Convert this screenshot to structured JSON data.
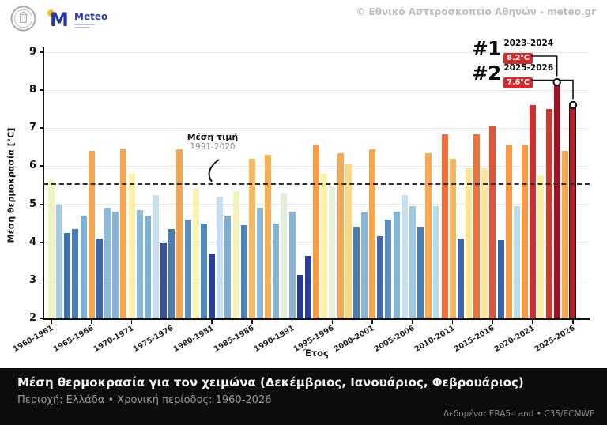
{
  "header": {
    "copyright": "© Εθνικό Αστεροσκοπείο Αθηνών - meteo.gr",
    "meteo_logo_letter": "M",
    "meteo_logo_name": "Meteo"
  },
  "footer": {
    "title": "Μέση θερμοκρασία για τον χειμώνα (Δεκέμβριος, Ιανουάριος, Φεβρουάριος)",
    "subtitle": "Περιοχή: Ελλάδα • Χρονική περίοδος: 1960-2026",
    "source": "Δεδομένα: ERA5-Land • C3S/ECMWF"
  },
  "chart_data": {
    "type": "bar",
    "xlabel": "Έτος",
    "ylabel": "Μέση θερμοκρασία [°C]",
    "ylim": [
      2,
      9
    ],
    "yticks": [
      2,
      3,
      4,
      5,
      6,
      7,
      8,
      9
    ],
    "grid": true,
    "x_tick_every": 5,
    "mean_line": {
      "value": 5.53,
      "label": "Μέση τιμή",
      "sublabel": "1991-2020"
    },
    "rank_callouts": [
      {
        "rank": "#1",
        "season": "2023-2024",
        "value_label": "8.2°C",
        "season_index": 63
      },
      {
        "rank": "#2",
        "season": "2025-2026",
        "value_label": "7.6°C",
        "season_index": 65
      }
    ],
    "marker_indices": [
      63,
      65
    ],
    "outlined_index": 65,
    "categories": [
      "1960-1961",
      "1961-1962",
      "1962-1963",
      "1963-1964",
      "1964-1965",
      "1965-1966",
      "1966-1967",
      "1967-1968",
      "1968-1969",
      "1969-1970",
      "1970-1971",
      "1971-1972",
      "1972-1973",
      "1973-1974",
      "1974-1975",
      "1975-1976",
      "1976-1977",
      "1977-1978",
      "1978-1979",
      "1979-1980",
      "1980-1981",
      "1981-1982",
      "1982-1983",
      "1983-1984",
      "1984-1985",
      "1985-1986",
      "1986-1987",
      "1987-1988",
      "1988-1989",
      "1989-1990",
      "1990-1991",
      "1991-1992",
      "1992-1993",
      "1993-1994",
      "1994-1995",
      "1995-1996",
      "1996-1997",
      "1997-1998",
      "1998-1999",
      "1999-2000",
      "2000-2001",
      "2001-2002",
      "2002-2003",
      "2003-2004",
      "2004-2005",
      "2005-2006",
      "2006-2007",
      "2007-2008",
      "2008-2009",
      "2009-2010",
      "2010-2011",
      "2011-2012",
      "2012-2013",
      "2013-2014",
      "2014-2015",
      "2015-2016",
      "2016-2017",
      "2017-2018",
      "2018-2019",
      "2019-2020",
      "2020-2021",
      "2021-2022",
      "2022-2023",
      "2023-2024",
      "2024-2025",
      "2025-2026"
    ],
    "values": [
      5.65,
      5.0,
      4.25,
      4.35,
      4.7,
      6.4,
      4.1,
      4.9,
      4.8,
      6.45,
      5.8,
      4.85,
      4.7,
      5.25,
      4.0,
      4.35,
      6.45,
      4.6,
      5.4,
      4.5,
      3.7,
      5.2,
      4.7,
      5.35,
      4.45,
      6.2,
      4.9,
      6.3,
      4.5,
      5.3,
      4.8,
      3.15,
      3.65,
      6.55,
      5.8,
      5.5,
      6.35,
      6.05,
      4.4,
      4.8,
      6.45,
      4.15,
      4.6,
      4.8,
      5.25,
      4.95,
      4.4,
      6.35,
      4.95,
      6.85,
      6.2,
      4.1,
      5.95,
      6.85,
      5.95,
      7.05,
      4.05,
      6.55,
      4.95,
      6.55,
      7.6,
      5.75,
      7.5,
      8.2,
      6.4,
      7.6
    ],
    "colors": [
      "#eef4c0",
      "#a6cde3",
      "#4173ae",
      "#4a7cb5",
      "#7fb0d4",
      "#f7a64e",
      "#3c66a9",
      "#8cbada",
      "#86b5d7",
      "#f7a64e",
      "#fbf0a5",
      "#8cbada",
      "#7fb0d4",
      "#c6e0f0",
      "#34519e",
      "#4a7cb5",
      "#f7a64e",
      "#5d8dc0",
      "#f4f4b5",
      "#538abc",
      "#2c3f97",
      "#c6e0f0",
      "#7fb0d4",
      "#f1f5bc",
      "#4f84b9",
      "#f9b75c",
      "#8cbada",
      "#f8b055",
      "#83b4d6",
      "#e3efda",
      "#86b5d7",
      "#27398e",
      "#2c3f97",
      "#f79b47",
      "#fbf0a5",
      "#e6f1dc",
      "#f8a850",
      "#fbd77e",
      "#4a7cb5",
      "#86b5d7",
      "#f7a64e",
      "#3e69ab",
      "#5d8dc0",
      "#86b5d7",
      "#c6e0f0",
      "#9dc8e0",
      "#4a7cb5",
      "#f8a850",
      "#b8dde9",
      "#ef7138",
      "#f9b75c",
      "#3c66a9",
      "#fde697",
      "#ef7138",
      "#fde697",
      "#e65235",
      "#3a62a7",
      "#f79b47",
      "#b8dde9",
      "#f79b47",
      "#c93231",
      "#fbf0a5",
      "#d23a31",
      "#9d1127",
      "#f7a64e",
      "#b2222d"
    ]
  },
  "ui_colors": {
    "badge_red": "#d42b2b",
    "footer_bg": "#0c0c0c",
    "grid": "#e7e7e7",
    "axis": "#111111"
  }
}
